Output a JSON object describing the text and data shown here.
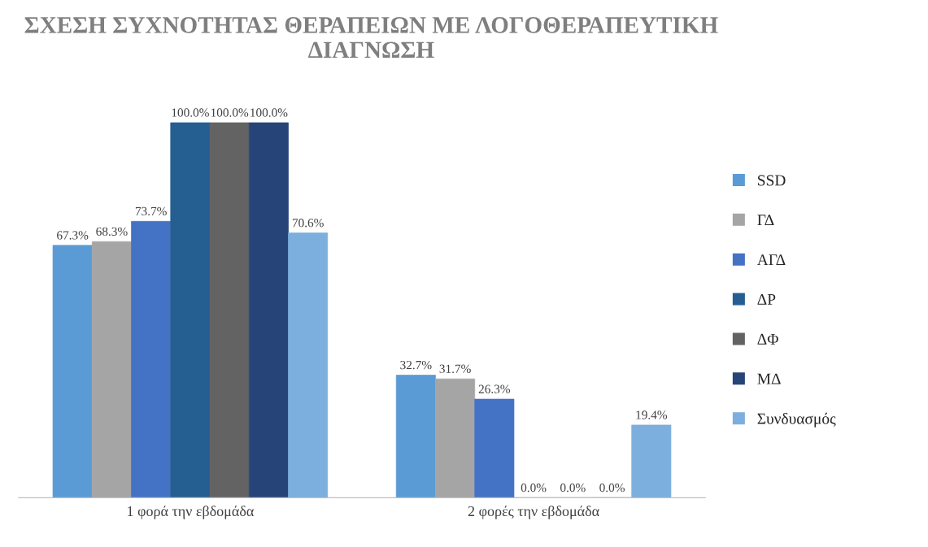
{
  "chart_data": {
    "type": "bar",
    "title": "ΣΧΕΣΗ ΣΥΧΝΟΤΗΤΑΣ ΘΕΡΑΠΕΙΩΝ ΜΕ ΛΟΓΟΘΕΡΑΠΕΥΤΙΚΗ ΔΙΑΓΝΩΣΗ",
    "categories": [
      "1 φορά την εβδομάδα",
      "2 φορές την εβδομάδα"
    ],
    "series": [
      {
        "name": "SSD",
        "color": "#5b9bd5",
        "values": [
          67.3,
          32.7
        ],
        "value_labels": [
          "67.3%",
          "32.7%"
        ]
      },
      {
        "name": "ΓΔ",
        "color": "#a5a5a5",
        "values": [
          68.3,
          31.7
        ],
        "value_labels": [
          "68.3%",
          "31.7%"
        ]
      },
      {
        "name": "ΑΓΔ",
        "color": "#4472c4",
        "values": [
          73.7,
          26.3
        ],
        "value_labels": [
          "73.7%",
          "26.3%"
        ]
      },
      {
        "name": "ΔΡ",
        "color": "#255e91",
        "values": [
          100.0,
          0.0
        ],
        "value_labels": [
          "100.0%",
          "0.0%"
        ]
      },
      {
        "name": "ΔΦ",
        "color": "#636363",
        "values": [
          100.0,
          0.0
        ],
        "value_labels": [
          "100.0%",
          "0.0%"
        ]
      },
      {
        "name": "ΜΔ",
        "color": "#264478",
        "values": [
          100.0,
          0.0
        ],
        "value_labels": [
          "100.0%",
          "0.0%"
        ]
      },
      {
        "name": "Συνδυασμός",
        "color": "#7cafdd",
        "values": [
          70.6,
          19.4
        ],
        "value_labels": [
          "70.6%",
          "19.4%"
        ]
      }
    ],
    "legend": "right",
    "tick_labels": "x"
  }
}
